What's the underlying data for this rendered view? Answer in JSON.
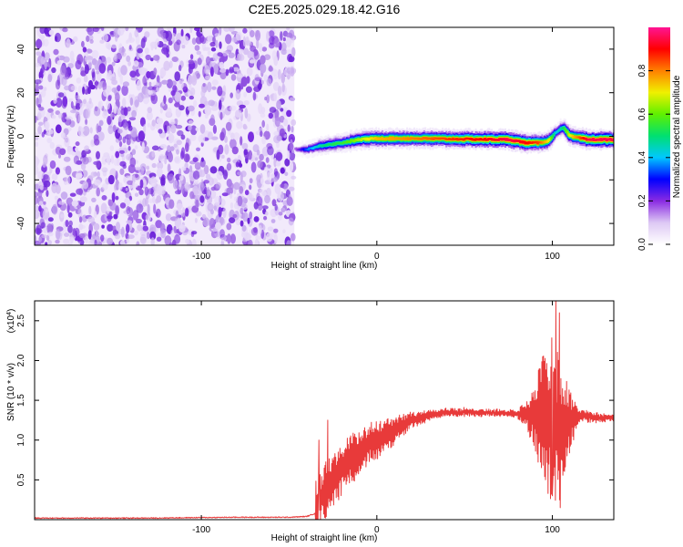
{
  "title": "C2E5.2025.029.18.42.G16",
  "chart_data": [
    {
      "type": "heatmap",
      "title": "C2E5.2025.029.18.42.G16",
      "xlabel": "Height of straight line (km)",
      "ylabel": "Frequency (Hz)",
      "xlim": [
        -195,
        135
      ],
      "ylim": [
        -50,
        50
      ],
      "xticks": [
        -100,
        0,
        100
      ],
      "yticks": [
        -40,
        -20,
        0,
        20,
        40
      ],
      "grid": false,
      "noise_region_x": [
        -195,
        -47
      ],
      "signal_trace": {
        "x": [
          -47,
          -40,
          -30,
          -20,
          -10,
          0,
          20,
          40,
          60,
          75,
          85,
          92,
          98,
          102,
          106,
          110,
          120,
          135
        ],
        "frequency": [
          -6,
          -6,
          -4,
          -3,
          -1.5,
          -1,
          -1,
          -1.2,
          -1.4,
          -1.5,
          -3,
          -3,
          -2,
          2,
          4,
          0,
          -1.5,
          -1.5
        ],
        "peak_amplitude": [
          0.15,
          0.35,
          0.5,
          0.55,
          0.65,
          0.75,
          0.8,
          0.85,
          0.9,
          0.95,
          0.9,
          0.85,
          0.7,
          0.4,
          0.5,
          0.7,
          0.95,
          0.95
        ]
      },
      "colorbar": {
        "label": "Normalized spectral amplitude",
        "range": [
          0,
          1
        ],
        "ticks": [
          "0.0",
          "0.2",
          "0.4",
          "0.6",
          "0.8"
        ],
        "colors": [
          "#ffffff",
          "#ddc8f4",
          "#8a2be2",
          "#0000ff",
          "#00c8ff",
          "#00e070",
          "#60f000",
          "#f0f000",
          "#ff8000",
          "#ff0000",
          "#ff1493"
        ]
      }
    },
    {
      "type": "line",
      "xlabel": "Height of straight line (km)",
      "ylabel": "SNR (10 * v/v)",
      "y_multiplier": "(x10^4)",
      "xlim": [
        -195,
        135
      ],
      "ylim": [
        0,
        2.75
      ],
      "xticks": [
        -100,
        0,
        100
      ],
      "yticks": [
        0.5,
        1.0,
        1.5,
        2.0,
        2.5
      ],
      "ytick_labels": [
        "0.5",
        "1.0",
        "1.5",
        "2.0",
        "2.5"
      ],
      "line_color": "#e83a3a",
      "baseline_x": [
        -195,
        -130,
        -80,
        -50,
        -40,
        -35
      ],
      "baseline_y": [
        0.02,
        0.02,
        0.03,
        0.03,
        0.04,
        0.08
      ],
      "trend_x": [
        -35,
        -30,
        -25,
        -20,
        -15,
        -10,
        -5,
        0,
        10,
        20,
        30,
        40,
        50,
        60,
        70,
        80,
        85,
        90,
        95,
        100,
        105,
        110,
        115,
        120,
        125,
        135
      ],
      "trend_y": [
        0.15,
        0.35,
        0.5,
        0.65,
        0.75,
        0.85,
        0.95,
        1.0,
        1.12,
        1.25,
        1.32,
        1.35,
        1.35,
        1.35,
        1.34,
        1.33,
        1.32,
        1.3,
        1.3,
        1.25,
        1.1,
        1.25,
        1.3,
        1.3,
        1.28,
        1.28
      ],
      "noise_amplitude_x": [
        -35,
        -20,
        0,
        20,
        40,
        80,
        88,
        95,
        100,
        104,
        108,
        115,
        135
      ],
      "noise_amplitude_y": [
        0.35,
        0.35,
        0.25,
        0.1,
        0.05,
        0.04,
        0.3,
        0.8,
        1.1,
        0.9,
        0.6,
        0.08,
        0.04
      ],
      "peaks": [
        {
          "x": 102,
          "y": 2.75
        },
        {
          "x": 104,
          "y": 2.6
        },
        {
          "x": 104.5,
          "y": 0.15
        },
        {
          "x": 100,
          "y": 0.3
        },
        {
          "x": -28,
          "y": 1.25
        },
        {
          "x": -33,
          "y": 1.0
        }
      ]
    }
  ]
}
